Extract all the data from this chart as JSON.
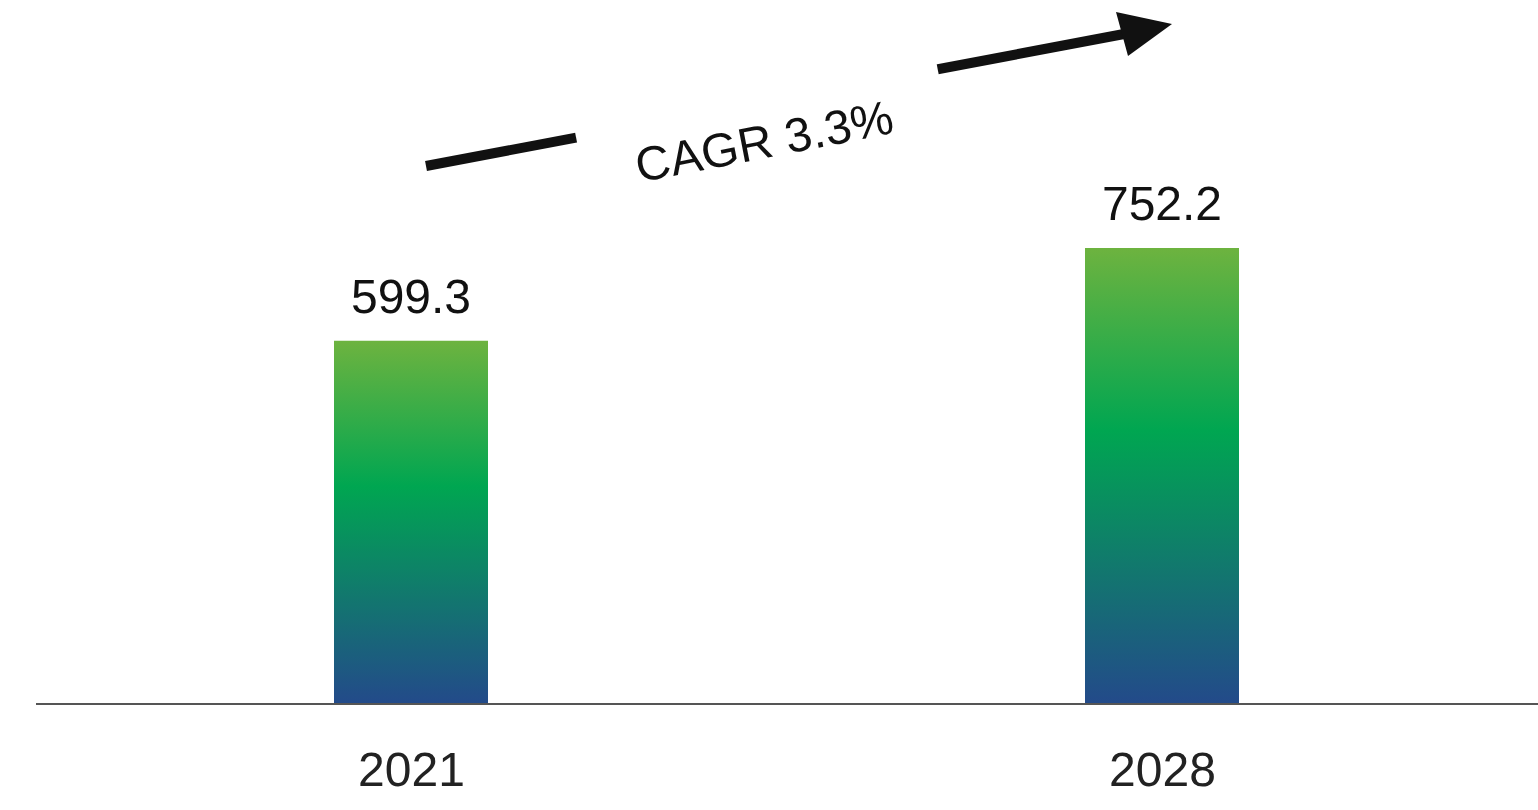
{
  "chart_data": {
    "type": "bar",
    "categories": [
      "2021",
      "2028"
    ],
    "series": [
      {
        "color": "#00a651",
        "values": [
          599.3,
          752.2
        ]
      }
    ],
    "data_labels": true,
    "annotations": [
      "CAGR 3.3%"
    ]
  }
}
